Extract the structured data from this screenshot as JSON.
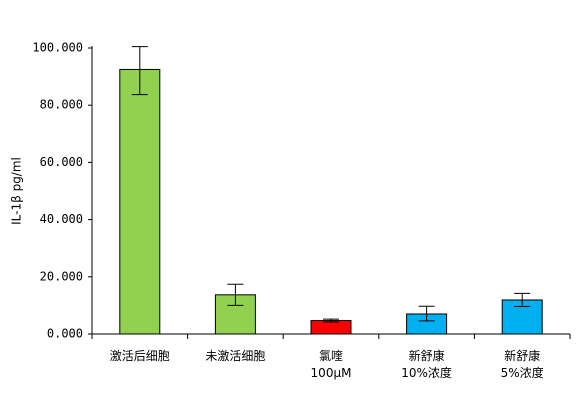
{
  "chart_data": {
    "type": "bar",
    "title": "",
    "xlabel": "",
    "ylabel": "IL-1β pg/ml",
    "ylim": [
      0,
      100
    ],
    "yticks": [
      0,
      20,
      40,
      60,
      80,
      100
    ],
    "ytick_labels": [
      "0.000",
      "20.000",
      "40.000",
      "60.000",
      "80.000",
      "100.000"
    ],
    "grid": false,
    "legend": "none",
    "categories": [
      [
        "激活后细胞"
      ],
      [
        "未激活细胞"
      ],
      [
        "氯喹",
        "100μM"
      ],
      [
        "新舒康",
        "10%浓度"
      ],
      [
        "新舒康",
        "5%浓度"
      ]
    ],
    "values": [
      92.5,
      13.7,
      4.7,
      7.0,
      11.9
    ],
    "error_low": [
      83.7,
      10.0,
      4.2,
      4.6,
      9.6
    ],
    "error_high": [
      100.5,
      17.4,
      5.2,
      9.7,
      14.2
    ],
    "colors": [
      "#92d050",
      "#92d050",
      "#ff0000",
      "#00b0f0",
      "#00b0f0"
    ],
    "bar_stroke": "#000000"
  }
}
